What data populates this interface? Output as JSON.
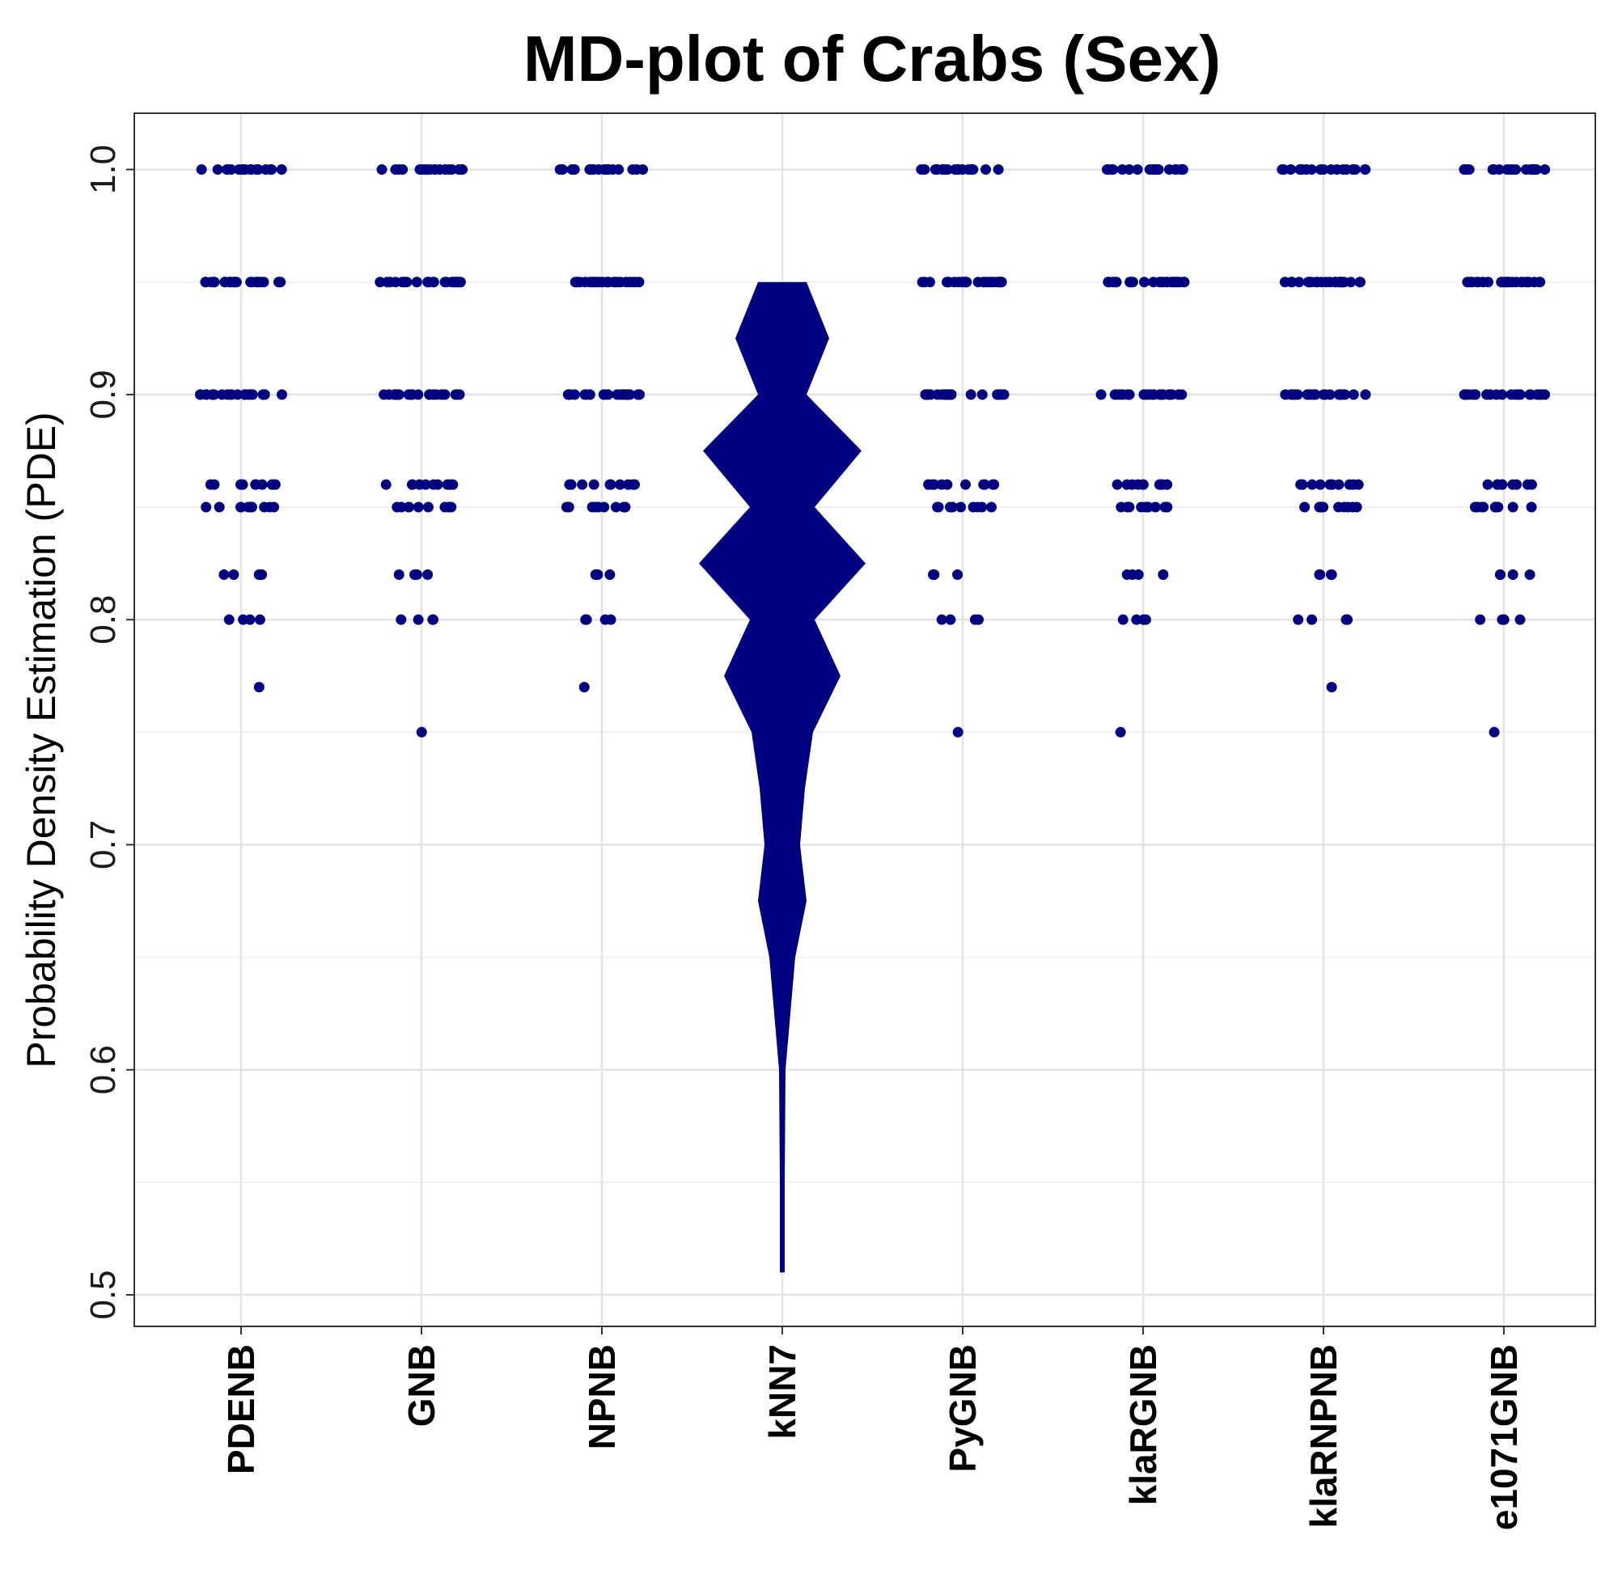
{
  "chart_data": {
    "type": "scatter",
    "title": "MD-plot of Crabs (Sex)",
    "xlabel": "",
    "ylabel": "Probability Density Estimation (PDE)",
    "categories": [
      "PDENB",
      "GNB",
      "NPNB",
      "kNN7",
      "PyGNB",
      "klaRGNB",
      "klaRNPNB",
      "e1071GNB"
    ],
    "ylim": [
      0.486,
      1.025
    ],
    "yticks": [
      "0.5",
      "0.6",
      "0.7",
      "0.8",
      "0.9",
      "1.0"
    ],
    "grid": true,
    "color": "#000080",
    "series": [
      {
        "values": [
          1.0,
          0.95,
          0.9,
          0.86,
          0.85,
          0.82,
          0.8,
          0.77
        ]
      },
      {
        "values": [
          1.0,
          0.95,
          0.9,
          0.86,
          0.85,
          0.82,
          0.8,
          0.75
        ]
      },
      {
        "values": [
          1.0,
          0.95,
          0.9,
          0.86,
          0.85,
          0.82,
          0.8,
          0.77
        ]
      },
      {
        "values": [
          0.95,
          0.925,
          0.9,
          0.875,
          0.85,
          0.825,
          0.8,
          0.775,
          0.75,
          0.725,
          0.7,
          0.675,
          0.65,
          0.6,
          0.55,
          0.51
        ]
      },
      {
        "values": [
          1.0,
          0.95,
          0.9,
          0.86,
          0.85,
          0.82,
          0.8,
          0.75
        ]
      },
      {
        "values": [
          1.0,
          0.95,
          0.9,
          0.86,
          0.85,
          0.82,
          0.8,
          0.75
        ]
      },
      {
        "values": [
          1.0,
          0.95,
          0.9,
          0.86,
          0.85,
          0.82,
          0.8,
          0.77
        ]
      },
      {
        "values": [
          1.0,
          0.95,
          0.9,
          0.86,
          0.85,
          0.82,
          0.8,
          0.75
        ]
      }
    ]
  }
}
